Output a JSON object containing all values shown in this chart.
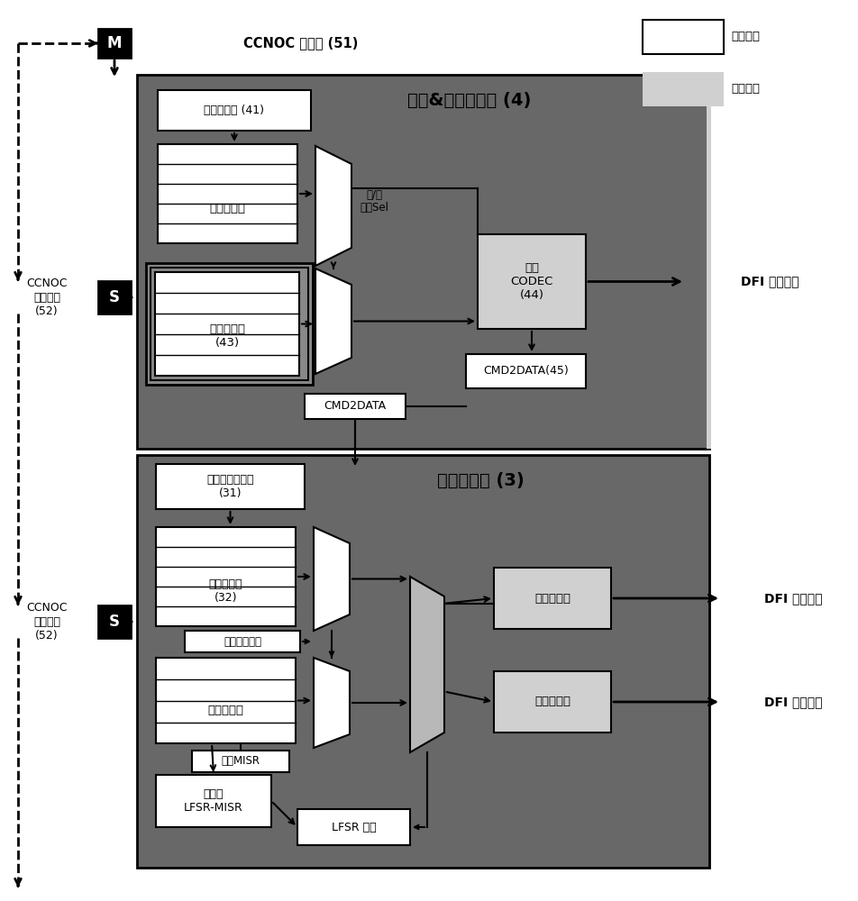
{
  "bg_color": "#ffffff",
  "dark_gray": "#686868",
  "medium_gray": "#888888",
  "light_gray": "#b8b8b8",
  "lighter_gray": "#d0d0d0",
  "white": "#ffffff",
  "black": "#000000",
  "title_top": "命令&地址定序器 (4)",
  "title_bottom": "数据定序器 (3)",
  "label_M": "M",
  "label_S": "S",
  "ccnoc_master": "CCNOC 主设备 (51)",
  "ccnoc_slave1": "CCNOC\n从属设备\n(52)",
  "ccnoc_slave2": "CCNOC\n从属设备\n(52)",
  "cmd_seq": "命令定序器 (41)",
  "cmd_list": "命令序列表",
  "addr_seq": "地址定序器\n(43)",
  "mux_label": "行/列\n相位Sel",
  "codec_label": "命令\nCODEC\n(44)",
  "cmd2data_label": "CMD2DATA",
  "cmd2data45_label": "CMD2DATA(45)",
  "dfi_cmd": "DFI 命令传送",
  "data_seq_ctrl": "数据定序器控制\n(31)",
  "data_list": "数据序列表\n(32)",
  "data_buf": "数据缓冲器",
  "read_mode": "读取数据模式",
  "misr_label": "用于MISR",
  "lfsr_misr": "可编程\nLFSR-MISR",
  "lfsr_comp": "LFSR 比较",
  "data_decoder": "数据解码器",
  "data_encoder": "数据编码器",
  "dfi_recv": "DFI 数据接收",
  "dfi_send": "DFI 数据传送",
  "legend_white": "无关协议",
  "legend_gray": "特定协议"
}
